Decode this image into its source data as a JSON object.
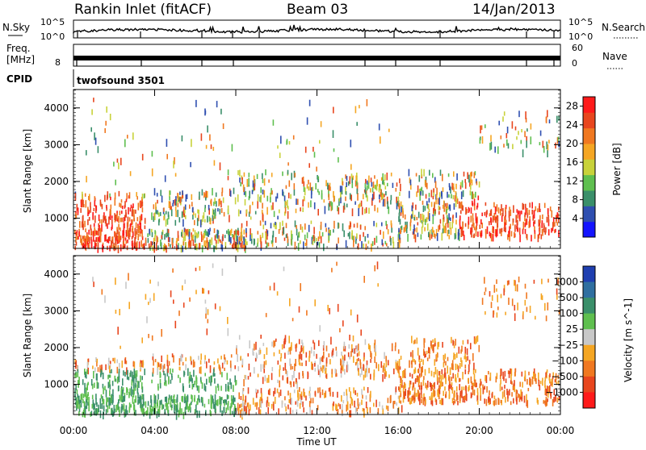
{
  "header": {
    "station": "Rankin Inlet (fitACF)",
    "beam": "Beam 03",
    "date": "14/Jan/2013"
  },
  "noise_panel": {
    "left_label": "N.Sky",
    "left_ticks": [
      "10^5",
      "10^0"
    ],
    "right_label": "N.Search",
    "right_ticks": [
      "10^5",
      "10^0"
    ]
  },
  "freq_panel": {
    "left_label_1": "Freq.",
    "left_label_2": "[MHz]",
    "left_ticks": [
      "8"
    ],
    "right_label": "Nave",
    "right_ticks": [
      "60",
      "0"
    ]
  },
  "cpid_panel": {
    "label": "CPID",
    "value": "twofsound 3501"
  },
  "colors": {
    "power_scale": [
      "#1414ff",
      "#2f4fb0",
      "#3a8f6a",
      "#5fbf4f",
      "#c8d23a",
      "#f5a623",
      "#f07820",
      "#e8461e",
      "#ff1a1a"
    ],
    "velocity_scale": [
      "#1f3fb0",
      "#2f6fa0",
      "#3a8f6a",
      "#5fbf4f",
      "#c8c8c8",
      "#f5a623",
      "#f07820",
      "#e8461e",
      "#ff1a1a"
    ]
  },
  "chart_data": [
    {
      "type": "heatmap",
      "name": "power",
      "ylabel": "Slant Range [km]",
      "ylim": [
        180,
        4500
      ],
      "yticks": [
        1000,
        2000,
        3000,
        4000
      ],
      "xlim": [
        0,
        24
      ],
      "xticks": [
        0,
        4,
        8,
        12,
        16,
        20,
        24
      ],
      "colorbar_label": "Power [dB]",
      "colorbar_ticks": [
        4,
        8,
        12,
        16,
        20,
        24,
        28
      ],
      "clim": [
        0,
        30
      ]
    },
    {
      "type": "heatmap",
      "name": "velocity",
      "ylabel": "Slant Range [km]",
      "ylim": [
        180,
        4500
      ],
      "yticks": [
        1000,
        2000,
        3000,
        4000
      ],
      "xlim": [
        0,
        24
      ],
      "xticks": [
        0,
        4,
        8,
        12,
        16,
        20,
        24
      ],
      "colorbar_label": "Velocity [m s^-1]",
      "colorbar_ticks": [
        "1000",
        "500",
        "100",
        "25",
        "−25",
        "−100",
        "−500",
        "−1000"
      ]
    }
  ],
  "xaxis": {
    "label": "Time UT",
    "tick_labels": [
      "00:00",
      "04:00",
      "08:00",
      "12:00",
      "16:00",
      "20:00",
      "00:00"
    ]
  }
}
